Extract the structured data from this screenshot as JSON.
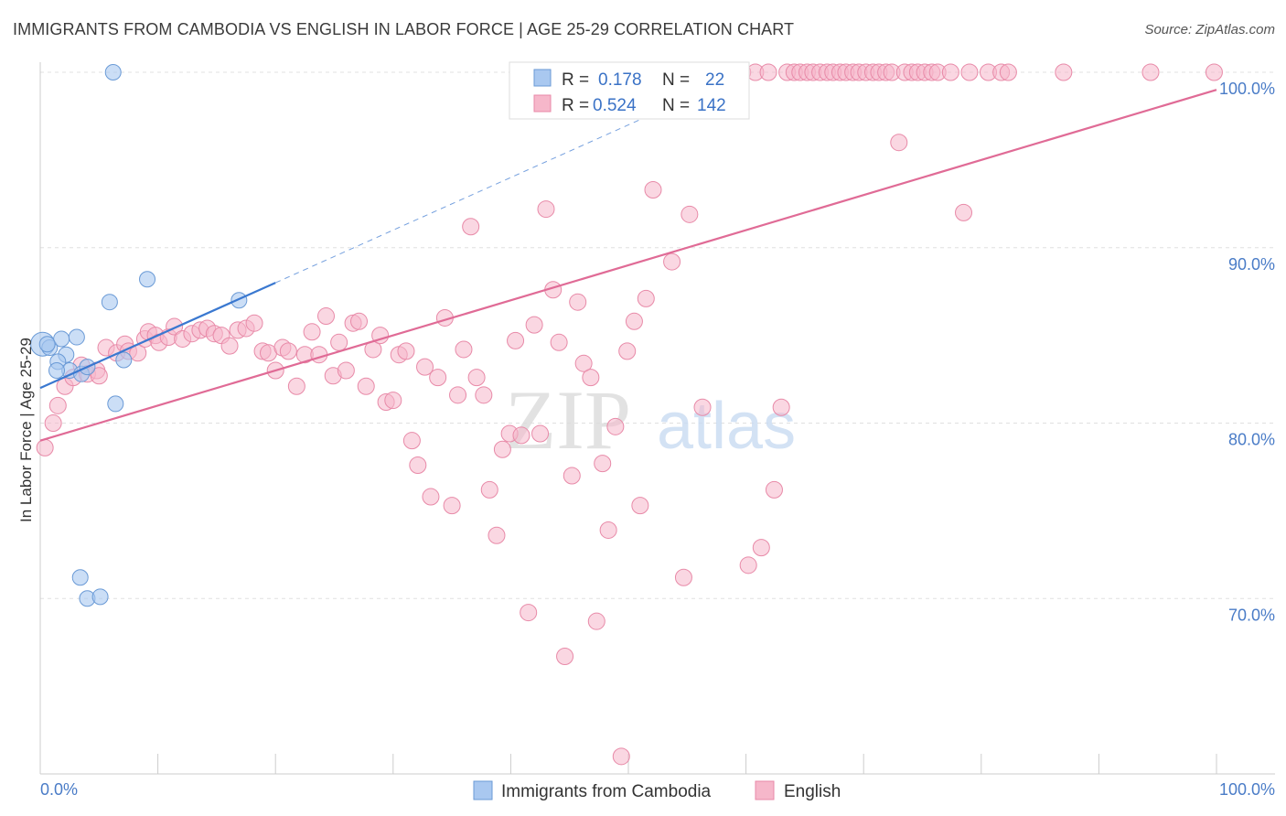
{
  "title": "IMMIGRANTS FROM CAMBODIA VS ENGLISH IN LABOR FORCE | AGE 25-29 CORRELATION CHART",
  "source": "Source: ZipAtlas.com",
  "watermark": {
    "zip": "ZIP",
    "atlas": "atlas"
  },
  "colors": {
    "blue_fill": "#a9c8f0",
    "blue_stroke": "#6a9ad6",
    "blue_line": "#3a78d0",
    "pink_fill": "#f6b7ca",
    "pink_stroke": "#e88aa8",
    "pink_line": "#e06b96",
    "grid": "#e0e0e0",
    "tick_text": "#4a7cc7"
  },
  "legend": {
    "items": [
      {
        "r_label": "R =",
        "r_value": "0.178",
        "n_label": "N =",
        "n_value": "22",
        "series": "blue"
      },
      {
        "r_label": "R =",
        "r_value": "0.524",
        "n_label": "N =",
        "n_value": "142",
        "series": "pink"
      }
    ]
  },
  "bottom_legend": [
    "Immigrants from Cambodia",
    "English"
  ],
  "chart_data": {
    "type": "scatter",
    "title": "IMMIGRANTS FROM CAMBODIA VS ENGLISH IN LABOR FORCE | AGE 25-29 CORRELATION CHART",
    "xlabel": "",
    "ylabel": "In Labor Force | Age 25-29",
    "xlim": [
      0,
      100
    ],
    "ylim": [
      60,
      100
    ],
    "x_tick_labels": [
      "0.0%",
      "100.0%"
    ],
    "y_ticks": [
      70,
      80,
      90,
      100
    ],
    "y_tick_labels": [
      "70.0%",
      "80.0%",
      "90.0%",
      "100.0%"
    ],
    "grid": true,
    "legend_position": "top-center",
    "series": [
      {
        "name": "Immigrants from Cambodia",
        "color": "blue",
        "regression": {
          "x0": 0,
          "y0": 82.0,
          "x1": 20,
          "y1": 88.0,
          "dashed_to_x": 55
        },
        "points": [
          [
            0.2,
            84.5
          ],
          [
            0.8,
            84.3
          ],
          [
            1.8,
            84.8
          ],
          [
            3.1,
            84.9
          ],
          [
            2.2,
            83.9
          ],
          [
            1.5,
            83.5
          ],
          [
            2.5,
            83.0
          ],
          [
            3.5,
            82.8
          ],
          [
            4.0,
            83.2
          ],
          [
            1.4,
            83.0
          ],
          [
            7.1,
            83.6
          ],
          [
            6.4,
            81.1
          ],
          [
            9.1,
            88.2
          ],
          [
            5.9,
            86.9
          ],
          [
            16.9,
            87.0
          ],
          [
            6.2,
            100.0
          ],
          [
            3.4,
            71.2
          ],
          [
            4.0,
            70.0
          ],
          [
            5.1,
            70.1
          ],
          [
            0.6,
            84.5
          ]
        ]
      },
      {
        "name": "English",
        "color": "pink",
        "regression": {
          "x0": 0,
          "y0": 79.0,
          "x1": 100,
          "y1": 99.0
        },
        "points": [
          [
            0.4,
            78.6
          ],
          [
            1.1,
            80.0
          ],
          [
            1.5,
            81.0
          ],
          [
            2.1,
            82.1
          ],
          [
            2.8,
            82.6
          ],
          [
            3.5,
            83.3
          ],
          [
            4.0,
            82.8
          ],
          [
            4.8,
            83.0
          ],
          [
            5.0,
            82.7
          ],
          [
            5.6,
            84.3
          ],
          [
            6.5,
            84.0
          ],
          [
            7.2,
            84.5
          ],
          [
            7.5,
            84.1
          ],
          [
            8.3,
            84.0
          ],
          [
            8.9,
            84.8
          ],
          [
            9.2,
            85.2
          ],
          [
            9.8,
            85.0
          ],
          [
            10.1,
            84.6
          ],
          [
            10.9,
            84.9
          ],
          [
            11.4,
            85.5
          ],
          [
            12.1,
            84.8
          ],
          [
            12.9,
            85.1
          ],
          [
            13.6,
            85.3
          ],
          [
            14.2,
            85.4
          ],
          [
            14.8,
            85.1
          ],
          [
            15.4,
            85.0
          ],
          [
            16.1,
            84.4
          ],
          [
            16.8,
            85.3
          ],
          [
            17.5,
            85.4
          ],
          [
            18.2,
            85.7
          ],
          [
            18.9,
            84.1
          ],
          [
            19.4,
            84.0
          ],
          [
            20.0,
            83.0
          ],
          [
            20.6,
            84.3
          ],
          [
            21.1,
            84.1
          ],
          [
            21.8,
            82.1
          ],
          [
            22.5,
            83.9
          ],
          [
            23.1,
            85.2
          ],
          [
            23.7,
            83.9
          ],
          [
            24.3,
            86.1
          ],
          [
            24.9,
            82.7
          ],
          [
            25.4,
            84.6
          ],
          [
            26.0,
            83.0
          ],
          [
            26.6,
            85.7
          ],
          [
            27.1,
            85.8
          ],
          [
            27.7,
            82.1
          ],
          [
            28.3,
            84.2
          ],
          [
            28.9,
            85.0
          ],
          [
            29.4,
            81.2
          ],
          [
            30.0,
            81.3
          ],
          [
            30.5,
            83.9
          ],
          [
            31.1,
            84.1
          ],
          [
            31.6,
            79.0
          ],
          [
            32.1,
            77.6
          ],
          [
            32.7,
            83.2
          ],
          [
            33.2,
            75.8
          ],
          [
            33.8,
            82.6
          ],
          [
            34.4,
            86.0
          ],
          [
            35.0,
            75.3
          ],
          [
            35.5,
            81.6
          ],
          [
            36.0,
            84.2
          ],
          [
            36.6,
            91.2
          ],
          [
            37.1,
            82.6
          ],
          [
            37.7,
            81.6
          ],
          [
            38.2,
            76.2
          ],
          [
            38.8,
            73.6
          ],
          [
            39.3,
            78.5
          ],
          [
            39.9,
            79.4
          ],
          [
            40.4,
            84.7
          ],
          [
            40.9,
            79.3
          ],
          [
            41.5,
            69.2
          ],
          [
            42.0,
            85.6
          ],
          [
            42.5,
            79.4
          ],
          [
            43.0,
            92.2
          ],
          [
            43.6,
            87.6
          ],
          [
            44.1,
            84.6
          ],
          [
            44.6,
            66.7
          ],
          [
            45.2,
            77.0
          ],
          [
            45.7,
            86.9
          ],
          [
            46.2,
            83.4
          ],
          [
            46.8,
            82.6
          ],
          [
            47.3,
            68.7
          ],
          [
            47.8,
            77.7
          ],
          [
            48.3,
            73.9
          ],
          [
            48.9,
            79.8
          ],
          [
            49.4,
            61.0
          ],
          [
            49.9,
            84.1
          ],
          [
            50.5,
            85.8
          ],
          [
            51.0,
            75.3
          ],
          [
            51.5,
            87.1
          ],
          [
            52.1,
            93.3
          ],
          [
            52.6,
            100.0
          ],
          [
            53.1,
            100.0
          ],
          [
            53.7,
            89.2
          ],
          [
            54.2,
            100.0
          ],
          [
            54.7,
            71.2
          ],
          [
            55.2,
            91.9
          ],
          [
            55.8,
            100.0
          ],
          [
            56.3,
            80.9
          ],
          [
            56.8,
            100.0
          ],
          [
            57.4,
            100.0
          ],
          [
            58.0,
            100.0
          ],
          [
            58.6,
            100.0
          ],
          [
            59.1,
            100.0
          ],
          [
            59.7,
            100.0
          ],
          [
            60.2,
            71.9
          ],
          [
            60.8,
            100.0
          ],
          [
            61.3,
            72.9
          ],
          [
            61.9,
            100.0
          ],
          [
            62.4,
            76.2
          ],
          [
            63.0,
            80.9
          ],
          [
            63.5,
            100.0
          ],
          [
            64.1,
            100.0
          ],
          [
            64.6,
            100.0
          ],
          [
            65.2,
            100.0
          ],
          [
            65.7,
            100.0
          ],
          [
            66.3,
            100.0
          ],
          [
            66.9,
            100.0
          ],
          [
            67.4,
            100.0
          ],
          [
            68.0,
            100.0
          ],
          [
            68.5,
            100.0
          ],
          [
            69.1,
            100.0
          ],
          [
            69.6,
            100.0
          ],
          [
            70.2,
            100.0
          ],
          [
            70.8,
            100.0
          ],
          [
            71.3,
            100.0
          ],
          [
            71.9,
            100.0
          ],
          [
            72.4,
            100.0
          ],
          [
            73.0,
            96.0
          ],
          [
            73.5,
            100.0
          ],
          [
            74.1,
            100.0
          ],
          [
            74.6,
            100.0
          ],
          [
            75.2,
            100.0
          ],
          [
            75.8,
            100.0
          ],
          [
            76.3,
            100.0
          ],
          [
            77.4,
            100.0
          ],
          [
            78.5,
            92.0
          ],
          [
            79.0,
            100.0
          ],
          [
            80.6,
            100.0
          ],
          [
            81.7,
            100.0
          ],
          [
            82.3,
            100.0
          ],
          [
            87.0,
            100.0
          ],
          [
            94.4,
            100.0
          ],
          [
            99.8,
            100.0
          ]
        ]
      }
    ]
  }
}
